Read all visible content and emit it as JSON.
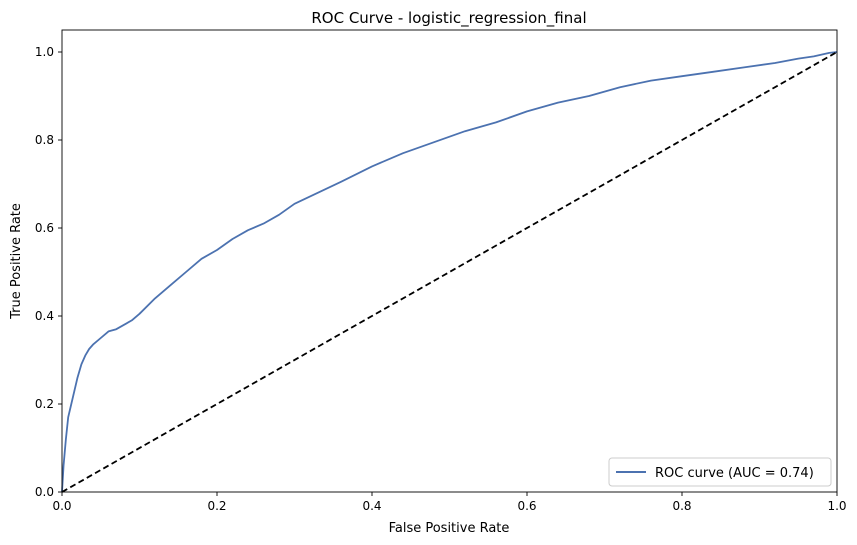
{
  "chart_data": {
    "type": "line",
    "title": "ROC Curve - logistic_regression_final",
    "xlabel": "False Positive Rate",
    "ylabel": "True Positive Rate",
    "xlim": [
      0.0,
      1.0
    ],
    "ylim": [
      0.0,
      1.05
    ],
    "xticks": [
      0.0,
      0.2,
      0.4,
      0.6,
      0.8,
      1.0
    ],
    "yticks": [
      0.0,
      0.2,
      0.4,
      0.6,
      0.8,
      1.0
    ],
    "xtick_labels": [
      "0.0",
      "0.2",
      "0.4",
      "0.6",
      "0.8",
      "1.0"
    ],
    "ytick_labels": [
      "0.0",
      "0.2",
      "0.4",
      "0.6",
      "0.8",
      "1.0"
    ],
    "grid": false,
    "legend_position": "lower-right",
    "series": [
      {
        "name": "ROC curve (AUC = 0.74)",
        "color": "#4c72b0",
        "style": "solid",
        "x": [
          0.0,
          0.002,
          0.005,
          0.008,
          0.012,
          0.016,
          0.02,
          0.025,
          0.03,
          0.035,
          0.04,
          0.05,
          0.06,
          0.07,
          0.08,
          0.09,
          0.1,
          0.12,
          0.14,
          0.16,
          0.18,
          0.2,
          0.22,
          0.24,
          0.26,
          0.28,
          0.3,
          0.33,
          0.36,
          0.4,
          0.44,
          0.48,
          0.52,
          0.56,
          0.6,
          0.64,
          0.68,
          0.72,
          0.76,
          0.8,
          0.84,
          0.88,
          0.92,
          0.95,
          0.97,
          0.99,
          1.0
        ],
        "y": [
          0.0,
          0.06,
          0.12,
          0.17,
          0.2,
          0.23,
          0.26,
          0.29,
          0.31,
          0.325,
          0.335,
          0.35,
          0.365,
          0.37,
          0.38,
          0.39,
          0.405,
          0.44,
          0.47,
          0.5,
          0.53,
          0.55,
          0.575,
          0.595,
          0.61,
          0.63,
          0.655,
          0.68,
          0.705,
          0.74,
          0.77,
          0.795,
          0.82,
          0.84,
          0.865,
          0.885,
          0.9,
          0.92,
          0.935,
          0.945,
          0.955,
          0.965,
          0.975,
          0.985,
          0.99,
          0.998,
          1.0
        ]
      },
      {
        "name": "",
        "color": "#000000",
        "style": "dashed",
        "x": [
          0.0,
          1.0
        ],
        "y": [
          0.0,
          1.0
        ]
      }
    ]
  }
}
